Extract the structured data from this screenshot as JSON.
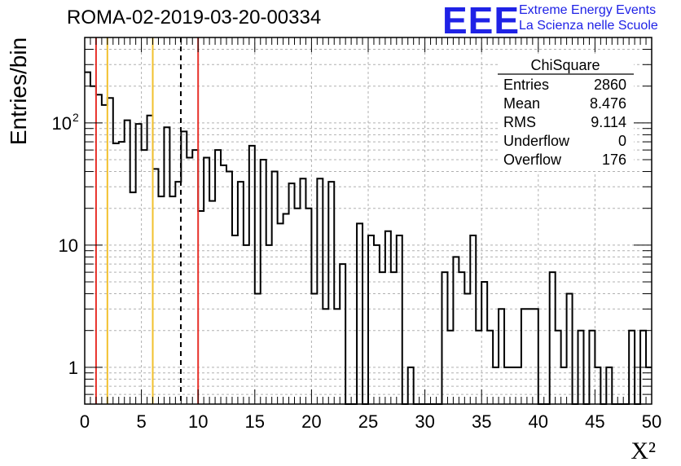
{
  "title": "ROMA-02-2019-03-20-00334",
  "logo": {
    "mark": "EEE",
    "line1": "Extreme Energy Events",
    "line2": "La Scienza nelle Scuole",
    "color": "#1f22e6"
  },
  "chart_data": {
    "type": "bar",
    "style": "step-histogram",
    "xlabel": "X²",
    "ylabel": "Entries/bin",
    "xlim": [
      0,
      50
    ],
    "ylim": [
      0.5,
      500
    ],
    "log_y": true,
    "grid": true,
    "bin_width": 0.5,
    "x_ticks": [
      "0",
      "5",
      "10",
      "15",
      "20",
      "25",
      "30",
      "35",
      "40",
      "45",
      "50"
    ],
    "y_ticks": [
      {
        "value": 1,
        "label": "1"
      },
      {
        "value": 10,
        "label": "10"
      },
      {
        "value": 100,
        "label": "10",
        "exp": "2"
      }
    ],
    "values": [
      260,
      200,
      170,
      140,
      160,
      68,
      70,
      105,
      27,
      98,
      60,
      115,
      42,
      25,
      92,
      25,
      33,
      85,
      52,
      60,
      19,
      52,
      23,
      60,
      45,
      40,
      12,
      33,
      10,
      65,
      4,
      50,
      10,
      40,
      15,
      18,
      32,
      20,
      35,
      20,
      4,
      35,
      3,
      33,
      3,
      7,
      0.3,
      0.3,
      15,
      0.3,
      12,
      10,
      6,
      13,
      6,
      12,
      0.3,
      1,
      0.3,
      0.3,
      0.3,
      0.3,
      0.3,
      6,
      2,
      8,
      6,
      4,
      12,
      2,
      5,
      2,
      1,
      3,
      1,
      1,
      1,
      3,
      3,
      3,
      0.3,
      0.3,
      6,
      2,
      1,
      4,
      0.3,
      2,
      0.3,
      2,
      1,
      0.3,
      1,
      0.3,
      0.3,
      0.3,
      2,
      0.3,
      2,
      1
    ],
    "lines": [
      {
        "x": 1.0,
        "color": "#e8312a",
        "style": "solid"
      },
      {
        "x": 2.0,
        "color": "#f2c12e",
        "style": "solid"
      },
      {
        "x": 6.0,
        "color": "#f2c12e",
        "style": "solid"
      },
      {
        "x": 8.476,
        "color": "#000000",
        "style": "dashed"
      },
      {
        "x": 10.0,
        "color": "#e8312a",
        "style": "solid"
      }
    ],
    "stats": {
      "name": "ChiSquare",
      "rows": [
        {
          "label": "Entries",
          "value": "2860"
        },
        {
          "label": "Mean",
          "value": "8.476"
        },
        {
          "label": "RMS",
          "value": "9.114"
        },
        {
          "label": "Underflow",
          "value": "0"
        },
        {
          "label": "Overflow",
          "value": "176"
        }
      ]
    }
  }
}
